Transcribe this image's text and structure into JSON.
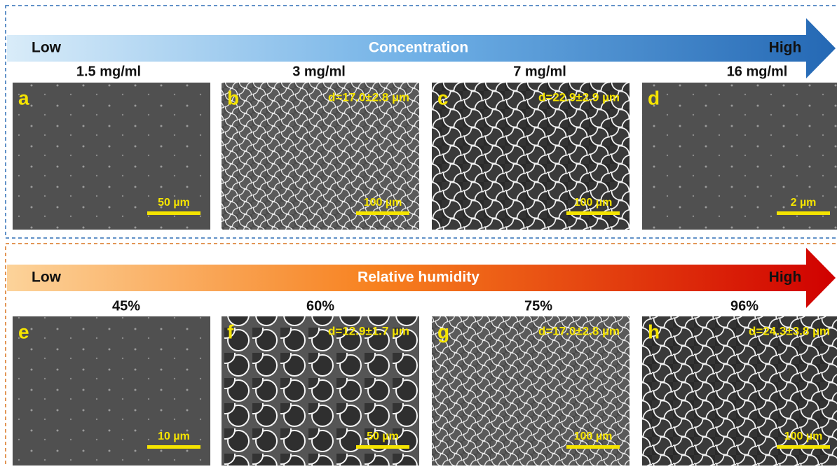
{
  "panels": [
    {
      "arrow": {
        "low": "Low",
        "title": "Concentration",
        "high": "High"
      },
      "images": [
        {
          "condition": "1.5 mg/ml",
          "letter": "a",
          "scale_bar": "50 µm"
        },
        {
          "condition": "3 mg/ml",
          "letter": "b",
          "diameter": "d=17.0±2.8 µm",
          "scale_bar": "100 µm"
        },
        {
          "condition": "7 mg/ml",
          "letter": "c",
          "diameter": "d=22.9±2.9 µm",
          "scale_bar": "100 µm"
        },
        {
          "condition": "16 mg/ml",
          "letter": "d",
          "scale_bar": "2 µm"
        }
      ]
    },
    {
      "arrow": {
        "low": "Low",
        "title": "Relative humidity",
        "high": "High"
      },
      "images": [
        {
          "condition": "45%",
          "letter": "e",
          "scale_bar": "10 µm"
        },
        {
          "condition": "60%",
          "letter": "f",
          "diameter": "d=12.9±1.7 µm",
          "scale_bar": "50 µm"
        },
        {
          "condition": "75%",
          "letter": "g",
          "diameter": "d=17.0±2.8 µm",
          "scale_bar": "100 µm"
        },
        {
          "condition": "96%",
          "letter": "h",
          "diameter": "d=24.3±3.8 µm",
          "scale_bar": "100 µm"
        }
      ]
    }
  ]
}
